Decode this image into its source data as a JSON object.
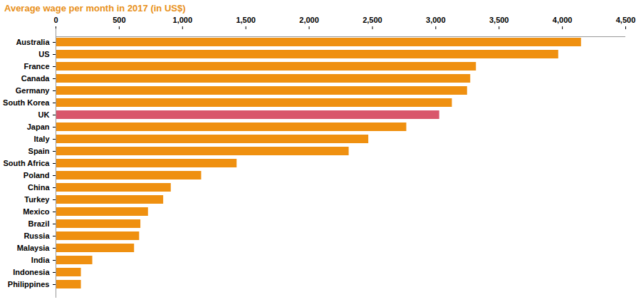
{
  "chart_data": {
    "type": "bar",
    "orientation": "horizontal",
    "title": "Average wage per month in 2017 (in US$)",
    "categories": [
      "Australia",
      "US",
      "France",
      "Canada",
      "Germany",
      "South Korea",
      "UK",
      "Japan",
      "Italy",
      "Spain",
      "South Africa",
      "Poland",
      "China",
      "Turkey",
      "Mexico",
      "Brazil",
      "Russia",
      "Malaysia",
      "India",
      "Indonesia",
      "Philippines"
    ],
    "values": [
      4150,
      3970,
      3320,
      3275,
      3250,
      3130,
      3030,
      2770,
      2470,
      2315,
      1430,
      1150,
      910,
      850,
      730,
      670,
      660,
      620,
      290,
      200,
      200
    ],
    "colors": [
      "#ef9010",
      "#ef9010",
      "#ef9010",
      "#ef9010",
      "#ef9010",
      "#ef9010",
      "#d9566b",
      "#ef9010",
      "#ef9010",
      "#ef9010",
      "#ef9010",
      "#ef9010",
      "#ef9010",
      "#ef9010",
      "#ef9010",
      "#ef9010",
      "#ef9010",
      "#ef9010",
      "#ef9010",
      "#ef9010",
      "#ef9010"
    ],
    "xlim": [
      0,
      4500
    ],
    "xticks": [
      0,
      500,
      {
        "value": 1000,
        "label": "1,000"
      },
      {
        "value": 1500,
        "label": "1,500"
      },
      {
        "value": 2000,
        "label": "2,000"
      },
      {
        "value": 2500,
        "label": "2,500"
      },
      {
        "value": 3000,
        "label": "3,000"
      },
      {
        "value": 3500,
        "label": "3,500"
      },
      {
        "value": 4000,
        "label": "4,000"
      },
      {
        "value": 4500,
        "label": "4,500"
      }
    ],
    "grid": false
  }
}
